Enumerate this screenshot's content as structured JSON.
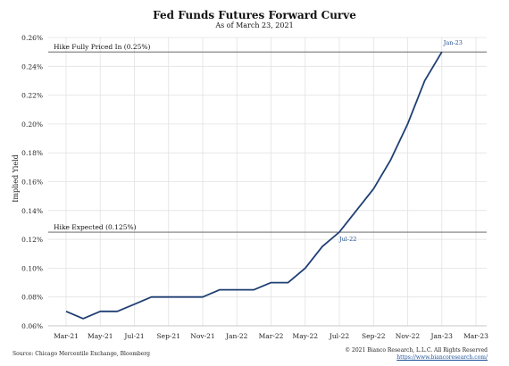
{
  "chart_data": {
    "type": "line",
    "title": "Fed Funds Futures Forward Curve",
    "subtitle": "As of March 23, 2021",
    "ylabel": "Implied Yield",
    "xlabel": "",
    "ylim": [
      0.06,
      0.26
    ],
    "yticks": [
      "0.06%",
      "0.08%",
      "0.10%",
      "0.12%",
      "0.14%",
      "0.16%",
      "0.18%",
      "0.20%",
      "0.22%",
      "0.24%",
      "0.26%"
    ],
    "xticks": [
      "Mar-21",
      "May-21",
      "Jul-21",
      "Sep-21",
      "Nov-21",
      "Jan-22",
      "Mar-22",
      "May-22",
      "Jul-22",
      "Sep-22",
      "Nov-22",
      "Jan-23",
      "Mar-23"
    ],
    "grid": true,
    "line_color": "#1f3f73",
    "series": [
      {
        "x": [
          "Mar-21",
          "Apr-21",
          "May-21",
          "Jun-21",
          "Jul-21",
          "Aug-21",
          "Sep-21",
          "Oct-21",
          "Nov-21",
          "Dec-21",
          "Jan-22",
          "Feb-22",
          "Mar-22",
          "Apr-22",
          "May-22",
          "Jun-22",
          "Jul-22",
          "Aug-22",
          "Sep-22",
          "Oct-22",
          "Nov-22",
          "Dec-22",
          "Jan-23"
        ],
        "values": [
          0.07,
          0.065,
          0.07,
          0.07,
          0.075,
          0.08,
          0.08,
          0.08,
          0.08,
          0.085,
          0.085,
          0.085,
          0.09,
          0.09,
          0.1,
          0.115,
          0.125,
          0.14,
          0.155,
          0.175,
          0.2,
          0.23,
          0.25
        ]
      }
    ],
    "reference_lines": [
      {
        "label": "Hike Fully Priced In (0.25%)",
        "value": 0.25,
        "color": "#555555"
      },
      {
        "label": "Hike Expected (0.125%)",
        "value": 0.125,
        "color": "#555555"
      }
    ],
    "annotations": [
      {
        "text": "Jan-23",
        "x": "Jan-23",
        "y": 0.25
      },
      {
        "text": "Jul-22",
        "x": "Jul-22",
        "y": 0.125
      }
    ]
  },
  "footer": {
    "source": "Source: Chicago Mercentile Exchange, Bloomberg",
    "copyright": "© 2021 Bianco Research, L.L.C. All Rights Reserved",
    "url": "https://www.biancoresearch.com/"
  }
}
